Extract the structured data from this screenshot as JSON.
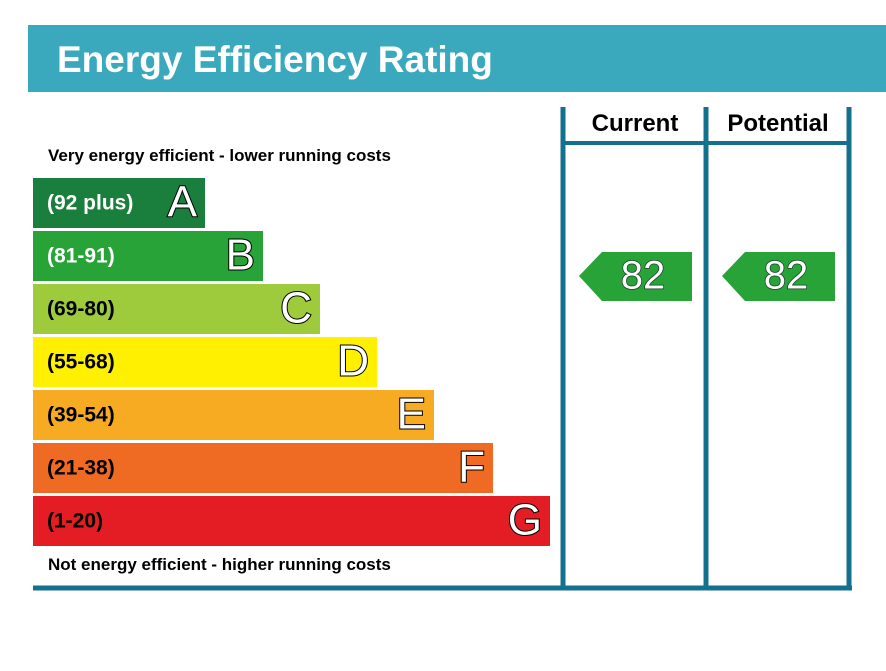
{
  "header": {
    "title": "Energy Efficiency Rating"
  },
  "columns": [
    "Current",
    "Potential"
  ],
  "top_note": "Very energy efficient - lower running costs",
  "bottom_note": "Not energy efficient - higher running costs",
  "bands": [
    {
      "range": "(92 plus)",
      "letter": "A"
    },
    {
      "range": "(81-91)",
      "letter": "B"
    },
    {
      "range": "(69-80)",
      "letter": "C"
    },
    {
      "range": "(55-68)",
      "letter": "D"
    },
    {
      "range": "(39-54)",
      "letter": "E"
    },
    {
      "range": "(21-38)",
      "letter": "F"
    },
    {
      "range": "(1-20)",
      "letter": "G"
    }
  ],
  "current": "82",
  "potential": "82"
}
